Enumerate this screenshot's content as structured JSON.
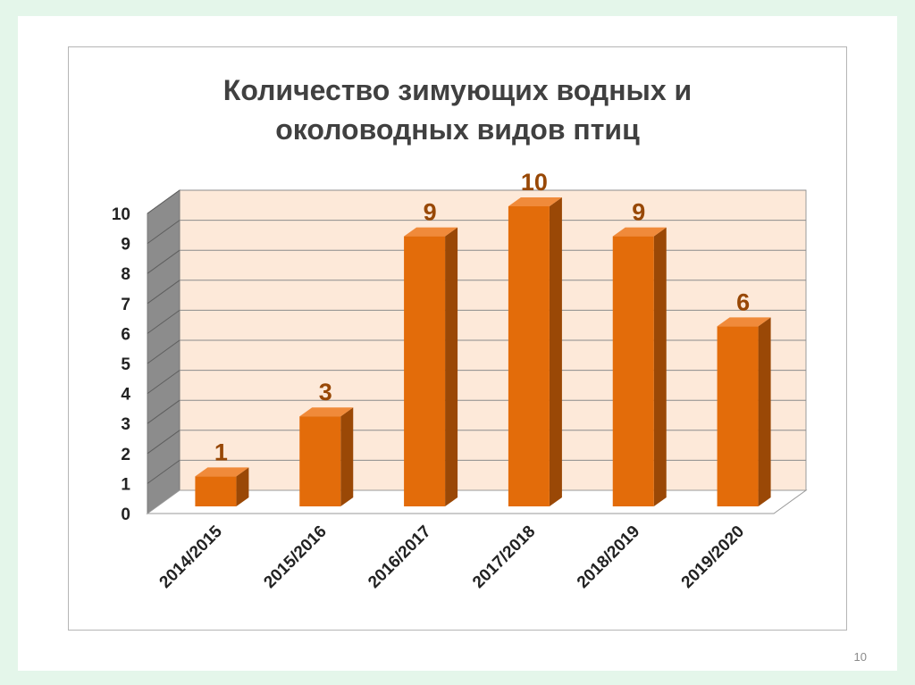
{
  "slide": {
    "page_number": "10"
  },
  "chart_data": {
    "type": "bar",
    "title_lines": [
      "Количество зимующих водных и",
      "околоводных видов птиц"
    ],
    "categories": [
      "2014/2015",
      "2015/2016",
      "2016/2017",
      "2017/2018",
      "2018/2019",
      "2019/2020"
    ],
    "values": [
      1,
      3,
      9,
      10,
      9,
      6
    ],
    "ylim": [
      0,
      10
    ],
    "yticks": [
      "0",
      "1",
      "2",
      "3",
      "4",
      "5",
      "6",
      "7",
      "8",
      "9",
      "10"
    ],
    "grid": true,
    "legend": "none",
    "colors": {
      "bar_front": "#e36c0a",
      "bar_side": "#9a4806",
      "bar_top": "#f08a3a",
      "back_wall": "#fde9d9",
      "side_wall": "#8c8c8c",
      "label_color": "#984806"
    }
  }
}
